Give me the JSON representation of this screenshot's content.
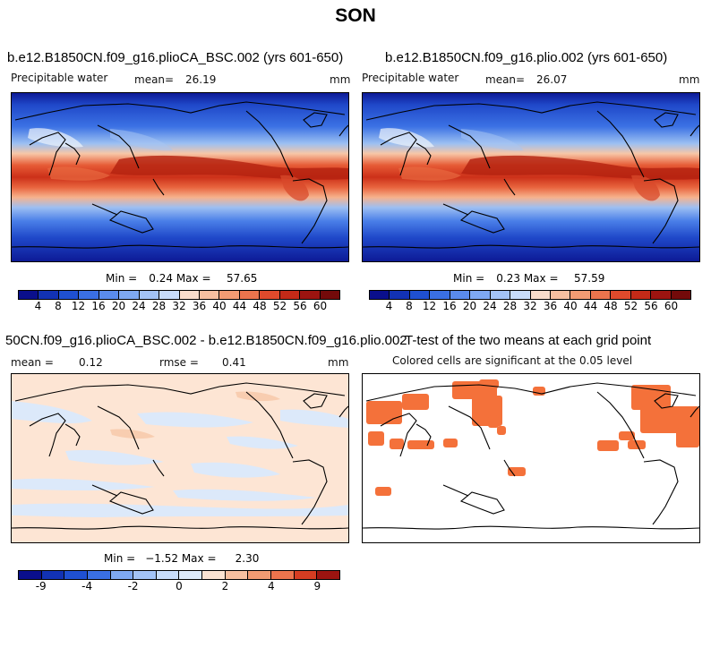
{
  "season": "SON",
  "panels": {
    "top_left": {
      "title": "b.e12.B1850CN.f09_g16.plioCA_BSC.002 (yrs 601-650)",
      "variable": "Precipitable water",
      "mean_label": "mean=",
      "mean": "26.19",
      "units": "mm",
      "min_label": "Min =",
      "min": "0.24",
      "max_label": "Max =",
      "max": "57.65"
    },
    "top_right": {
      "title": "b.e12.B1850CN.f09_g16.plio.002 (yrs 601-650)",
      "variable": "Precipitable water",
      "mean_label": "mean=",
      "mean": "26.07",
      "units": "mm",
      "min_label": "Min =",
      "min": "0.23",
      "max_label": "Max =",
      "max": "57.59"
    },
    "bottom_left": {
      "title": "50CN.f09_g16.plioCA_BSC.002 - b.e12.B1850CN.f09_g16.plio.002",
      "mean_label": "mean =",
      "mean": "0.12",
      "rmse_label": "rmse =",
      "rmse": "0.41",
      "units": "mm",
      "min_label": "Min =",
      "min": "−1.52",
      "max_label": "Max =",
      "max": "2.30"
    },
    "bottom_right": {
      "title": "T-test of the two means at each grid point",
      "subtitle": "Colored cells are significant at the 0.05 level",
      "sig_color": "#f4713a"
    }
  },
  "chart_data": [
    {
      "type": "heatmap",
      "title": "b.e12.B1850CN.f09_g16.plioCA_BSC.002 (yrs 601-650)",
      "variable": "Precipitable water",
      "units": "mm",
      "mean": 26.19,
      "min": 0.24,
      "max": 57.65,
      "colorbar_ticks": [
        "4",
        "8",
        "12",
        "16",
        "20",
        "24",
        "28",
        "32",
        "36",
        "40",
        "44",
        "48",
        "52",
        "56",
        "60"
      ],
      "colorbar_colors": [
        "#0a0f8c",
        "#1232b4",
        "#1f50d2",
        "#3a6fe3",
        "#5a8bec",
        "#7ea8f2",
        "#a3c3f6",
        "#c8dcfa",
        "#f8dccb",
        "#f6bfa0",
        "#f29b73",
        "#ec744d",
        "#e04a2c",
        "#c42a18",
        "#9c1410",
        "#730a0a"
      ]
    },
    {
      "type": "heatmap",
      "title": "b.e12.B1850CN.f09_g16.plio.002 (yrs 601-650)",
      "variable": "Precipitable water",
      "units": "mm",
      "mean": 26.07,
      "min": 0.23,
      "max": 57.59,
      "colorbar_ticks": [
        "4",
        "8",
        "12",
        "16",
        "20",
        "24",
        "28",
        "32",
        "36",
        "40",
        "44",
        "48",
        "52",
        "56",
        "60"
      ],
      "colorbar_colors": [
        "#0a0f8c",
        "#1232b4",
        "#1f50d2",
        "#3a6fe3",
        "#5a8bec",
        "#7ea8f2",
        "#a3c3f6",
        "#c8dcfa",
        "#f8dccb",
        "#f6bfa0",
        "#f29b73",
        "#ec744d",
        "#e04a2c",
        "#c42a18",
        "#9c1410",
        "#730a0a"
      ]
    },
    {
      "type": "heatmap",
      "title": "50CN.f09_g16.plioCA_BSC.002 - b.e12.B1850CN.f09_g16.plio.002",
      "units": "mm",
      "mean": 0.12,
      "rmse": 0.41,
      "min": -1.52,
      "max": 2.3,
      "colorbar_ticks": [
        "-9",
        "-4",
        "-2",
        "0",
        "2",
        "4",
        "9"
      ],
      "colorbar_colors": [
        "#0a0f8c",
        "#1232b4",
        "#1f50d2",
        "#3a6fe3",
        "#7ea8f2",
        "#a3c3f6",
        "#c8dcfa",
        "#dce9fa",
        "#fbe3d2",
        "#f6bfa0",
        "#f29b73",
        "#ec744d",
        "#d63d22",
        "#9c1410"
      ]
    },
    {
      "type": "heatmap",
      "title": "T-test of the two means at each grid point",
      "note": "Colored cells are significant at the 0.05 level"
    }
  ]
}
